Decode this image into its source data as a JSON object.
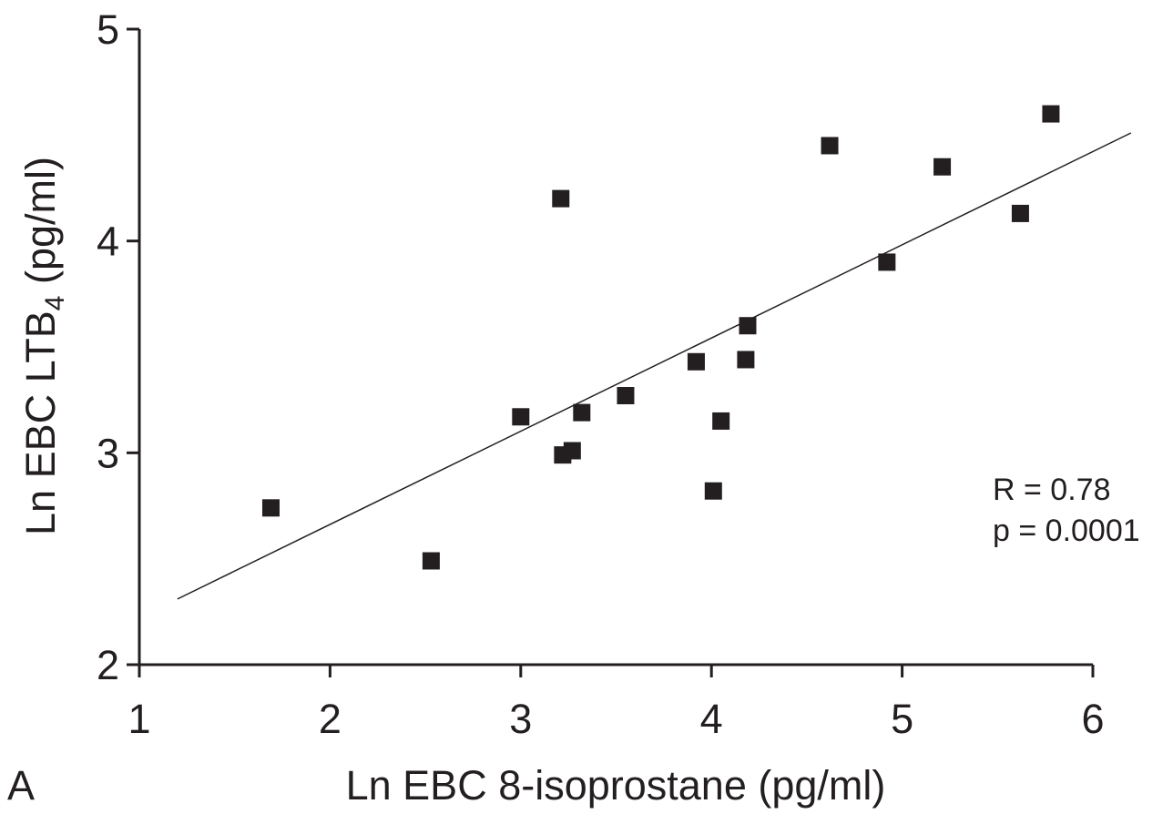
{
  "chart_data": {
    "type": "scatter",
    "panel_label": "A",
    "xlabel": "Ln EBC 8-isoprostane (pg/ml)",
    "ylabel": {
      "prefix": "Ln EBC LTB",
      "subscript": "4",
      "suffix": " (pg/ml)"
    },
    "xlim": [
      1,
      6
    ],
    "ylim": [
      2,
      5
    ],
    "x_ticks": [
      1,
      2,
      3,
      4,
      5,
      6
    ],
    "y_ticks": [
      2,
      3,
      4,
      5
    ],
    "grid": false,
    "marker": "square",
    "marker_color": "#231f20",
    "axis_color": "#231f20",
    "series": [
      {
        "points": [
          {
            "x": 1.69,
            "y": 2.74
          },
          {
            "x": 2.53,
            "y": 2.49
          },
          {
            "x": 3.0,
            "y": 3.17
          },
          {
            "x": 3.21,
            "y": 4.2
          },
          {
            "x": 3.22,
            "y": 2.99
          },
          {
            "x": 3.27,
            "y": 3.01
          },
          {
            "x": 3.32,
            "y": 3.19
          },
          {
            "x": 3.55,
            "y": 3.27
          },
          {
            "x": 3.92,
            "y": 3.43
          },
          {
            "x": 4.01,
            "y": 2.82
          },
          {
            "x": 4.05,
            "y": 3.15
          },
          {
            "x": 4.18,
            "y": 3.44
          },
          {
            "x": 4.19,
            "y": 3.6
          },
          {
            "x": 4.62,
            "y": 4.45
          },
          {
            "x": 4.92,
            "y": 3.9
          },
          {
            "x": 5.21,
            "y": 4.35
          },
          {
            "x": 5.62,
            "y": 4.13
          },
          {
            "x": 5.78,
            "y": 4.6
          }
        ]
      }
    ],
    "regression_line": {
      "x": [
        1.2,
        6.2
      ],
      "y": [
        2.31,
        4.51
      ]
    },
    "annotations": [
      "R = 0.78",
      "p = 0.0001"
    ]
  }
}
